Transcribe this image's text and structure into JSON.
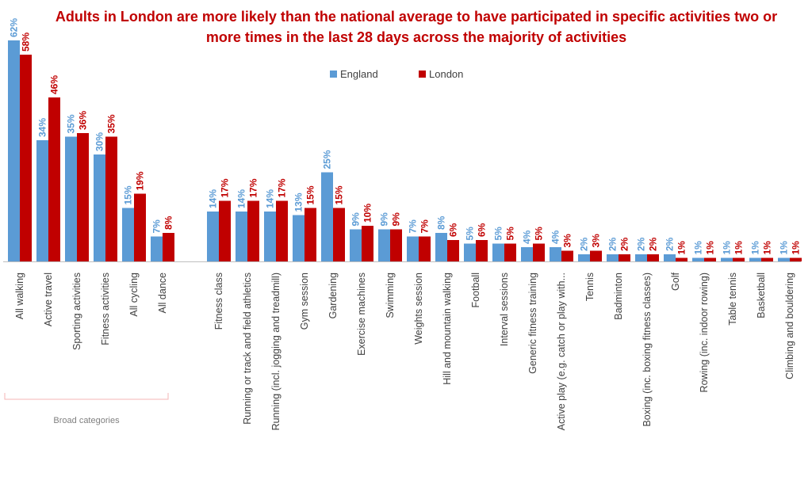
{
  "chart_data": {
    "type": "bar",
    "title": "Adults in London are more likely than the national average to have participated in specific activities two or more times in the last 28 days across the majority of activities",
    "xlabel": "",
    "ylabel": "",
    "ylim": [
      0,
      65
    ],
    "grid": false,
    "legend_position": "top-center",
    "categories": [
      "All walking",
      "Active travel",
      "Sporting activities",
      "Fitness activities",
      "All cycling",
      "All dance",
      "Fitness class",
      "Running or track and field athletics",
      "Running (incl. jogging and treadmill)",
      "Gym session",
      "Gardening",
      "Exercise machines",
      "Swimming",
      "Weights session",
      "Hill and mountain walking",
      "Football",
      "Interval sessions",
      "Generic fitness training",
      "Active play (e.g. catch or play with...",
      "Tennis",
      "Badminton",
      "Boxing (inc. boxing fitness classes)",
      "Golf",
      "Rowing (inc. indoor rowing)",
      "Table tennis",
      "Basketball",
      "Climbing and bouldering"
    ],
    "series": [
      {
        "name": "England",
        "color": "#5b9bd5",
        "values": [
          62,
          34,
          35,
          30,
          15,
          7,
          14,
          14,
          14,
          13,
          25,
          9,
          9,
          7,
          8,
          5,
          5,
          4,
          4,
          2,
          2,
          2,
          2,
          1,
          1,
          1,
          1
        ]
      },
      {
        "name": "London",
        "color": "#c00000",
        "values": [
          58,
          46,
          36,
          35,
          19,
          8,
          17,
          17,
          17,
          15,
          15,
          10,
          9,
          7,
          6,
          6,
          5,
          5,
          3,
          3,
          2,
          2,
          1,
          1,
          1,
          1,
          1
        ]
      }
    ],
    "value_suffix": "%",
    "group_annotation": "Broad categories",
    "group_annotation_count": 6
  }
}
